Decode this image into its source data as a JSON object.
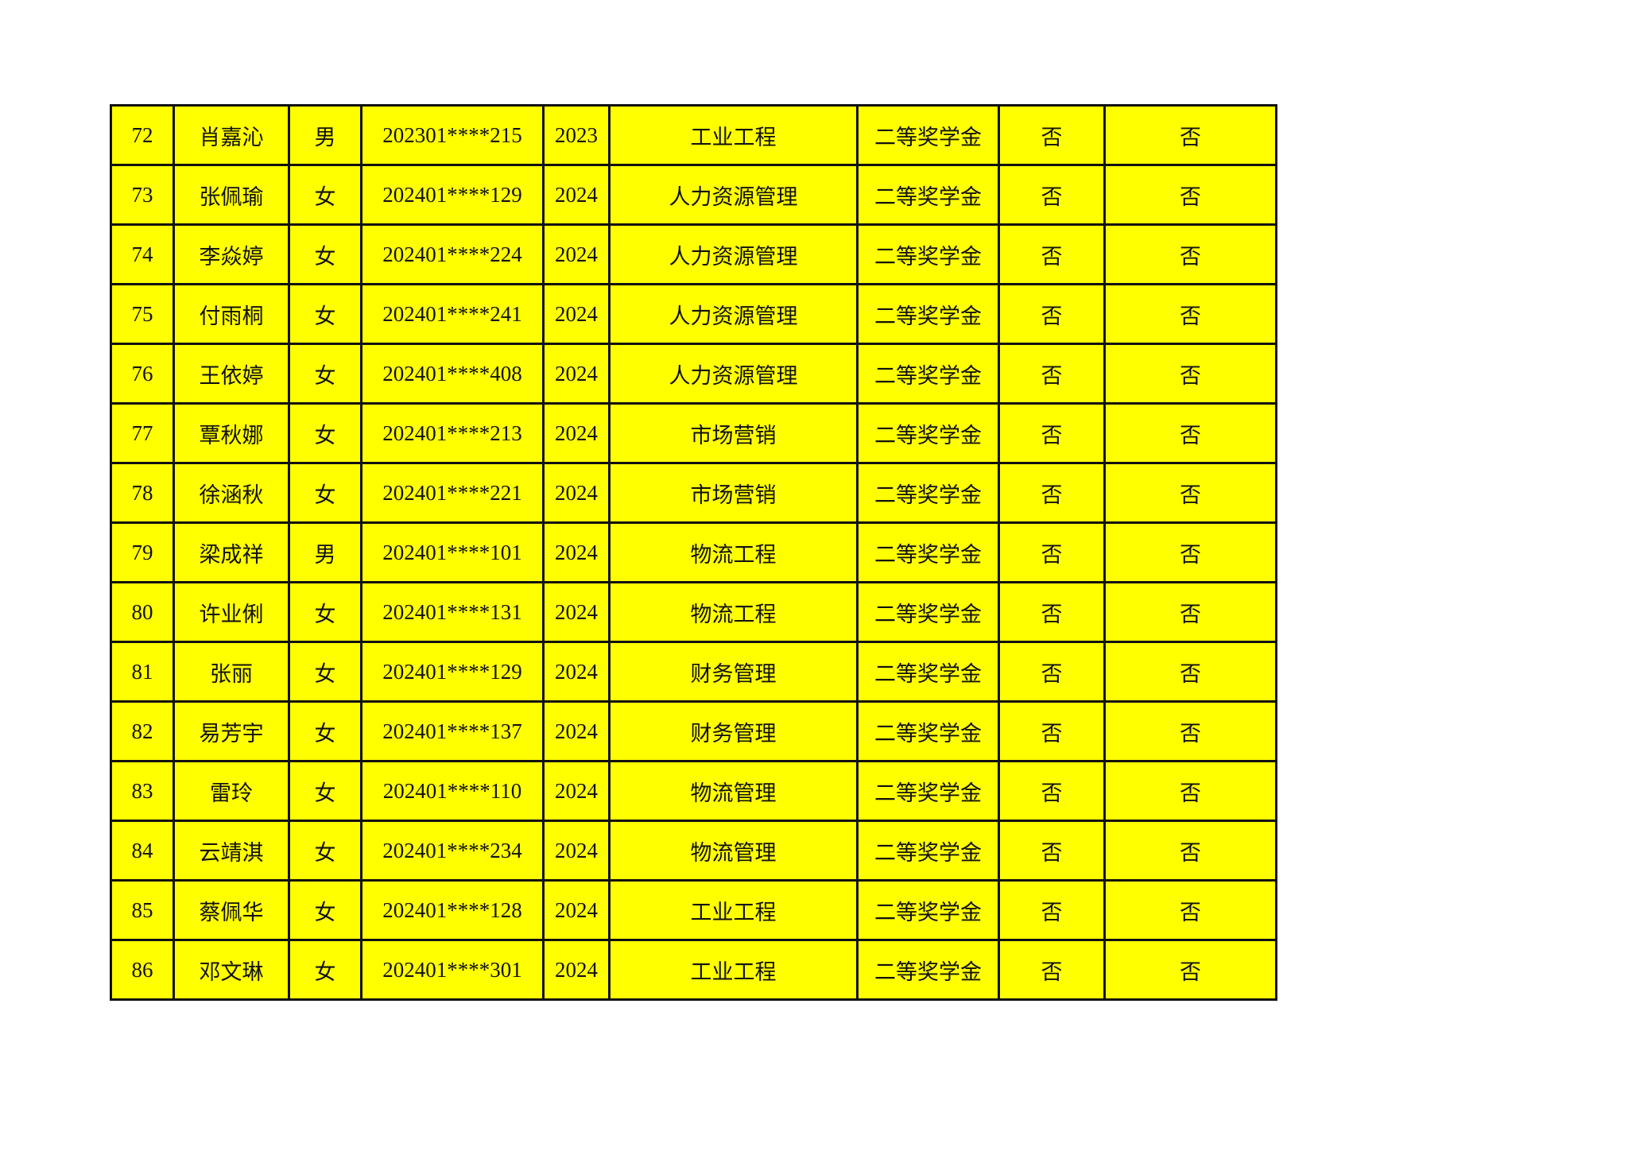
{
  "table": {
    "rows": [
      [
        "72",
        "肖嘉沁",
        "男",
        "202301****215",
        "2023",
        "工业工程",
        "二等奖学金",
        "否",
        "否"
      ],
      [
        "73",
        "张佩瑜",
        "女",
        "202401****129",
        "2024",
        "人力资源管理",
        "二等奖学金",
        "否",
        "否"
      ],
      [
        "74",
        "李焱婷",
        "女",
        "202401****224",
        "2024",
        "人力资源管理",
        "二等奖学金",
        "否",
        "否"
      ],
      [
        "75",
        "付雨桐",
        "女",
        "202401****241",
        "2024",
        "人力资源管理",
        "二等奖学金",
        "否",
        "否"
      ],
      [
        "76",
        "王依婷",
        "女",
        "202401****408",
        "2024",
        "人力资源管理",
        "二等奖学金",
        "否",
        "否"
      ],
      [
        "77",
        "覃秋娜",
        "女",
        "202401****213",
        "2024",
        "市场营销",
        "二等奖学金",
        "否",
        "否"
      ],
      [
        "78",
        "徐涵秋",
        "女",
        "202401****221",
        "2024",
        "市场营销",
        "二等奖学金",
        "否",
        "否"
      ],
      [
        "79",
        "梁成祥",
        "男",
        "202401****101",
        "2024",
        "物流工程",
        "二等奖学金",
        "否",
        "否"
      ],
      [
        "80",
        "许业俐",
        "女",
        "202401****131",
        "2024",
        "物流工程",
        "二等奖学金",
        "否",
        "否"
      ],
      [
        "81",
        "张丽",
        "女",
        "202401****129",
        "2024",
        "财务管理",
        "二等奖学金",
        "否",
        "否"
      ],
      [
        "82",
        "易芳宇",
        "女",
        "202401****137",
        "2024",
        "财务管理",
        "二等奖学金",
        "否",
        "否"
      ],
      [
        "83",
        "雷玲",
        "女",
        "202401****110",
        "2024",
        "物流管理",
        "二等奖学金",
        "否",
        "否"
      ],
      [
        "84",
        "云靖淇",
        "女",
        "202401****234",
        "2024",
        "物流管理",
        "二等奖学金",
        "否",
        "否"
      ],
      [
        "85",
        "蔡佩华",
        "女",
        "202401****128",
        "2024",
        "工业工程",
        "二等奖学金",
        "否",
        "否"
      ],
      [
        "86",
        "邓文琳",
        "女",
        "202401****301",
        "2024",
        "工业工程",
        "二等奖学金",
        "否",
        "否"
      ]
    ]
  },
  "colors": {
    "cell_fill": "#ffff00",
    "border": "#111111"
  }
}
